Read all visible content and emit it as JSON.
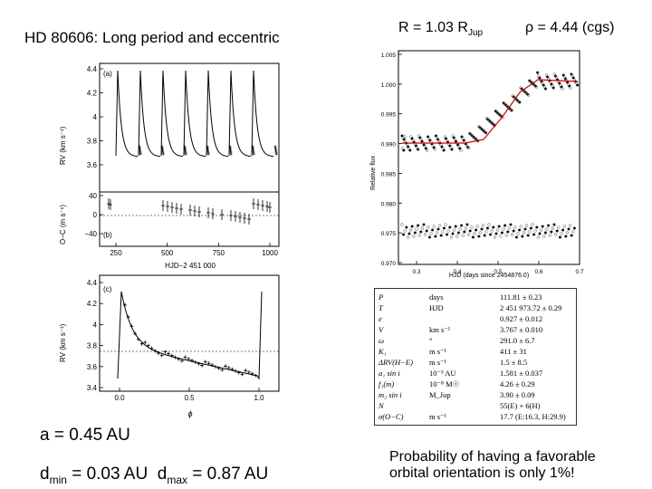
{
  "title": "HD 80606: Long period and eccentric",
  "radius": {
    "prefix": "R = 1.03 R",
    "sub": "Jup"
  },
  "density": "ρ = 4.44 (cgs)",
  "semimajor": "a = 0.45 AU",
  "distances": {
    "dmin_label": "d",
    "dmin_sub": "min",
    "dmin_value": " = 0.03 AU",
    "dmax_label": "d",
    "dmax_sub": "max",
    "dmax_value": " = 0.87 AU"
  },
  "probability": {
    "line1": "Probability of having a favorable",
    "line2": "orbital orientation is only 1%!"
  },
  "rv_plot": {
    "panel_a": "(a)",
    "panel_b": "(b)",
    "ylabel_a": "RV (km s⁻¹)",
    "ylabel_b": "O−C (m s⁻¹)",
    "xlabel": "HJD−2 451 000",
    "yticks_a": [
      "4.4",
      "4.2",
      "4",
      "3.8",
      "3.6"
    ],
    "yticks_b": [
      "40",
      "0",
      "−40"
    ],
    "xticks": [
      "250",
      "500",
      "750",
      "1000"
    ]
  },
  "phase_plot": {
    "panel": "(c)",
    "ylabel": "RV (km s⁻¹)",
    "xlabel": "ϕ",
    "yticks": [
      "4.4",
      "4.2",
      "4",
      "3.8",
      "3.6",
      "3.4"
    ],
    "xticks": [
      "0.0",
      "0.5",
      "1.0"
    ]
  },
  "transit_plot": {
    "ylabel": "Relative flux",
    "xlabel": "HJD (days since 2454876.0)",
    "yticks": [
      "1.005",
      "1.000",
      "0.995",
      "0.990",
      "0.985",
      "0.980",
      "0.975",
      "0.970"
    ],
    "xticks": [
      "0.3",
      "0.4",
      "0.5",
      "0.6",
      "0.7"
    ]
  },
  "params_table": [
    {
      "sym": "P",
      "unit": "days",
      "val": "111.81 ± 0.23"
    },
    {
      "sym": "T",
      "unit": "HJD",
      "val": "2 451 973.72 ± 0.29"
    },
    {
      "sym": "e",
      "unit": "",
      "val": "0.927 ± 0.012"
    },
    {
      "sym": "V",
      "unit": "km s⁻¹",
      "val": "3.767 ± 0.010"
    },
    {
      "sym": "ω",
      "unit": "°",
      "val": "291.0 ± 6.7"
    },
    {
      "sym": "K₁",
      "unit": "m s⁻¹",
      "val": "411 ± 31"
    },
    {
      "sym": "ΔRV(H−E)",
      "unit": "m s⁻¹",
      "val": "1.5 ± 8.5"
    },
    {
      "sym": "a₁ sin i",
      "unit": "10⁻³ AU",
      "val": "1.581 ± 0.037"
    },
    {
      "sym": "f₁(m)",
      "unit": "10⁻⁸ M☉",
      "val": "4.26 ± 0.29"
    },
    {
      "sym": "m₂ sin i",
      "unit": "M_Jup",
      "val": "3.90 ± 0.09"
    },
    {
      "sym": "N",
      "unit": "",
      "val": "55(E) + 6(H)"
    },
    {
      "sym": "σ(O−C)",
      "unit": "m s⁻¹",
      "val": "17.7 (E:16.3, H:29.9)"
    }
  ]
}
